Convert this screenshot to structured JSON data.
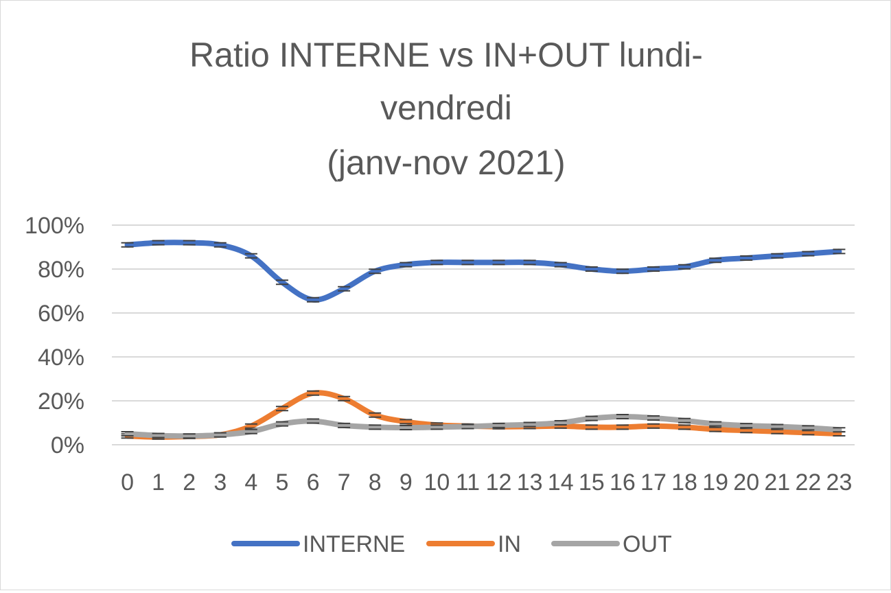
{
  "chart_data": {
    "type": "line",
    "title_lines": [
      "Ratio INTERNE vs IN+OUT lundi-",
      "vendredi",
      "(janv-nov 2021)"
    ],
    "categories": [
      "0",
      "1",
      "2",
      "3",
      "4",
      "5",
      "6",
      "7",
      "8",
      "9",
      "10",
      "11",
      "12",
      "13",
      "14",
      "15",
      "16",
      "17",
      "18",
      "19",
      "20",
      "21",
      "22",
      "23"
    ],
    "y_ticks": [
      "0%",
      "20%",
      "40%",
      "60%",
      "80%",
      "100%"
    ],
    "ylim": [
      0,
      100
    ],
    "grid": true,
    "legend_position": "bottom",
    "error_bars": true,
    "series": [
      {
        "name": "INTERNE",
        "color": "#4472c4",
        "values": [
          91,
          92,
          92,
          91,
          86,
          74,
          66,
          71,
          79,
          82,
          83,
          83,
          83,
          83,
          82,
          80,
          79,
          80,
          81,
          84,
          85,
          86,
          87,
          88
        ]
      },
      {
        "name": "IN",
        "color": "#ed7d31",
        "values": [
          4,
          3.5,
          3.8,
          4.5,
          8.5,
          16.5,
          23.5,
          21,
          13.5,
          10.5,
          9,
          8.5,
          8.2,
          8.3,
          8.5,
          8,
          8,
          8.5,
          8,
          7,
          6.5,
          6,
          5.5,
          5
        ]
      },
      {
        "name": "OUT",
        "color": "#a5a5a5",
        "values": [
          5,
          4.2,
          4,
          4.5,
          6,
          9.5,
          10.8,
          8.8,
          8,
          7.8,
          8,
          8.3,
          8.8,
          9.2,
          10,
          12,
          12.8,
          12.2,
          11,
          9.5,
          8.7,
          8.3,
          7.7,
          6.8
        ]
      }
    ]
  }
}
